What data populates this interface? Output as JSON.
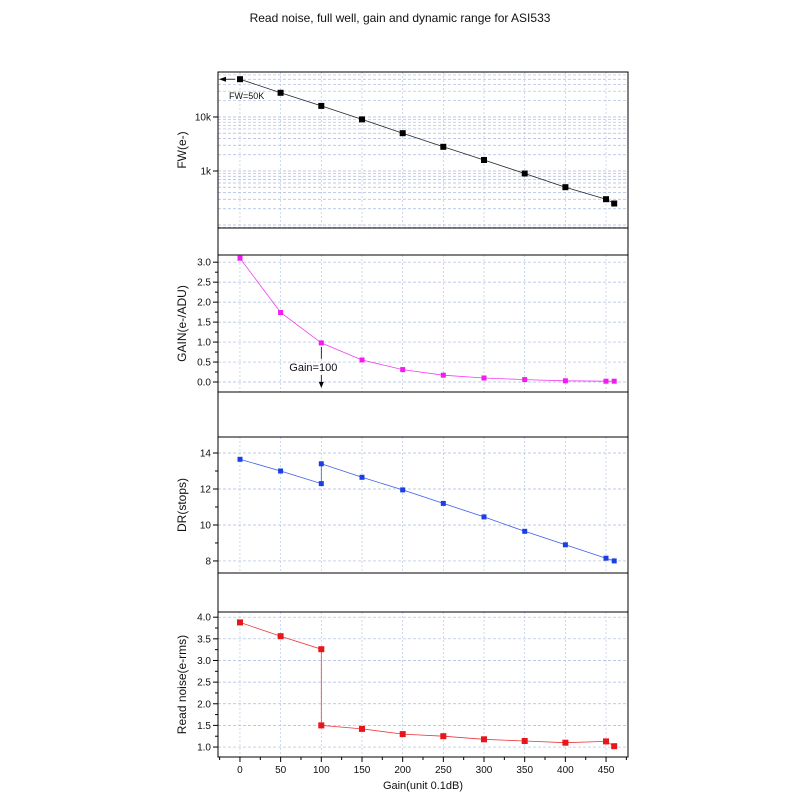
{
  "chart_data": {
    "type": "line",
    "title": "Read noise, full well, gain and dynamic range for ASI533",
    "xlabel": "Gain(unit 0.1dB)",
    "xlim": [
      -27,
      477
    ],
    "x_ticks": [
      0,
      50,
      100,
      150,
      200,
      250,
      300,
      350,
      400,
      450
    ],
    "x_tick_labels": [
      "0",
      "50",
      "100",
      "150",
      "200",
      "250",
      "300",
      "350",
      "400",
      "450"
    ],
    "grid": true,
    "grid_color": "#a9b9e0",
    "panels": [
      {
        "ylabel": "FW(e-)",
        "yscale": "log",
        "ylim": [
          88,
          68000
        ],
        "y_ticks": [
          1000,
          10000
        ],
        "y_tick_labels": [
          "1k",
          "10k"
        ],
        "color": "#000000",
        "marker": "square",
        "x": [
          0,
          50,
          100,
          150,
          200,
          250,
          300,
          350,
          400,
          450,
          460
        ],
        "y": [
          50000,
          28000,
          16000,
          9000,
          5000,
          2800,
          1600,
          900,
          500,
          300,
          250
        ],
        "annotations": [
          {
            "text": "FW=50K",
            "x": 0,
            "y": 50000
          }
        ]
      },
      {
        "ylabel": "GAIN(e-/ADU)",
        "yscale": "linear",
        "ylim": [
          -0.25,
          3.18
        ],
        "y_ticks": [
          0,
          0.5,
          1,
          1.5,
          2,
          2.5,
          3
        ],
        "y_tick_labels": [
          "0.0",
          "0.5",
          "1.0",
          "1.5",
          "2.0",
          "2.5",
          "3.0"
        ],
        "color": "#f01cf0",
        "marker": "square",
        "x": [
          0,
          50,
          100,
          150,
          200,
          250,
          300,
          350,
          400,
          450,
          460
        ],
        "y": [
          3.1,
          1.74,
          0.98,
          0.55,
          0.31,
          0.17,
          0.1,
          0.06,
          0.03,
          0.02,
          0.02
        ],
        "annotations": [
          {
            "text": "Gain=100",
            "x": 100,
            "y": 0.98
          }
        ]
      },
      {
        "ylabel": "DR(stops)",
        "yscale": "linear",
        "ylim": [
          7.33,
          14.89
        ],
        "y_ticks": [
          8,
          10,
          12,
          14
        ],
        "y_tick_labels": [
          "8",
          "10",
          "12",
          "14"
        ],
        "color": "#1b3fe6",
        "marker": "square",
        "x": [
          0,
          50,
          100,
          100,
          150,
          200,
          250,
          300,
          350,
          400,
          450,
          460
        ],
        "y": [
          13.65,
          13.0,
          12.3,
          13.4,
          12.65,
          11.95,
          11.2,
          10.45,
          9.65,
          8.9,
          8.15,
          8.0
        ]
      },
      {
        "ylabel": "Read noise(e-rms)",
        "yscale": "linear",
        "ylim": [
          0.77,
          4.12
        ],
        "y_ticks": [
          1,
          1.5,
          2,
          2.5,
          3,
          3.5,
          4
        ],
        "y_tick_labels": [
          "1.0",
          "1.5",
          "2.0",
          "2.5",
          "3.0",
          "3.5",
          "4.0"
        ],
        "color": "#e8151b",
        "marker": "square",
        "x": [
          0,
          50,
          100,
          100,
          150,
          200,
          250,
          300,
          350,
          400,
          450,
          460
        ],
        "y": [
          3.88,
          3.56,
          3.26,
          1.5,
          1.42,
          1.3,
          1.25,
          1.18,
          1.14,
          1.1,
          1.13,
          1.02
        ]
      }
    ]
  }
}
